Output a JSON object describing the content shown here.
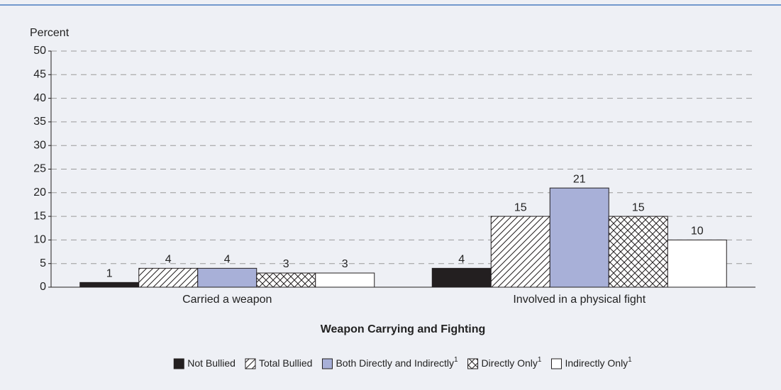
{
  "chart_data": {
    "type": "bar",
    "y_label": "Percent",
    "x_label": "Weapon Carrying and Fighting",
    "categories": [
      "Carried a weapon",
      "Involved in a physical fight"
    ],
    "series": [
      {
        "name": "Not Bullied",
        "color": "#231f20",
        "pattern": "solid",
        "values": [
          1,
          4
        ]
      },
      {
        "name": "Total Bullied",
        "color": "#ffffff",
        "pattern": "hatch",
        "values": [
          4,
          15
        ]
      },
      {
        "name": "Both Directly and Indirectly",
        "note": "1",
        "color": "#a8b0d8",
        "pattern": "solid",
        "values": [
          4,
          21
        ]
      },
      {
        "name": "Directly Only",
        "note": "1",
        "color": "#ffffff",
        "pattern": "crosshatch",
        "values": [
          3,
          15
        ]
      },
      {
        "name": "Indirectly Only",
        "note": "1",
        "color": "#ffffff",
        "pattern": "solid",
        "values": [
          3,
          10
        ]
      }
    ],
    "ylim": [
      0,
      50
    ],
    "yticks": [
      0,
      5,
      10,
      15,
      20,
      25,
      30,
      35,
      40,
      45,
      50
    ],
    "grid": true
  }
}
